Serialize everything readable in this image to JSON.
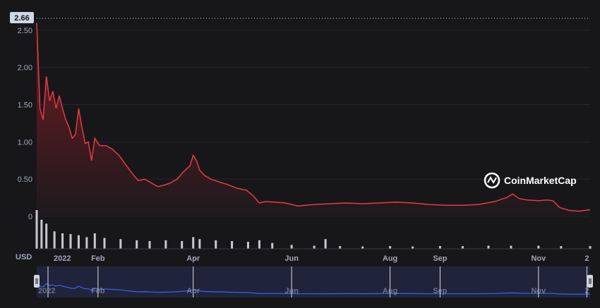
{
  "watermark": "CoinMarketCap",
  "currency_label": "USD",
  "price_badge": "2.66",
  "colors": {
    "background": "#17171a",
    "line": "#ea3943",
    "area_top": "#7a1c22",
    "area_bottom": "#1c1a1d",
    "volume": "#e7e9ef",
    "navigator_bg": "#20243a",
    "navigator_line": "#3861fb",
    "grid": "#26272c"
  },
  "chart_data": {
    "type": "area",
    "ylim": [
      0,
      2.66
    ],
    "y_ticks": [
      "0",
      "0.50",
      "1.00",
      "1.50",
      "2.00",
      "2.50"
    ],
    "y_tick_values": [
      0,
      0.5,
      1.0,
      1.5,
      2.0,
      2.5
    ],
    "x_ticks": [
      "2022",
      "Feb",
      "Apr",
      "Jun",
      "Aug",
      "Sep",
      "Nov",
      "2"
    ],
    "x_tick_dates": [
      "2022-01-01",
      "2022-02-01",
      "2022-04-01",
      "2022-06-01",
      "2022-08-01",
      "2022-09-01",
      "2022-11-01",
      "2022-12-01"
    ],
    "navigator_ticks": [
      "2022",
      "Feb",
      "Apr",
      "Jun",
      "Aug",
      "Sep",
      "Nov",
      "2"
    ],
    "grid": true,
    "series": [
      {
        "x": [
          "2021-12-25",
          "2021-12-27",
          "2021-12-29",
          "2021-12-31",
          "2022-01-02",
          "2022-01-04",
          "2022-01-06",
          "2022-01-08",
          "2022-01-10",
          "2022-01-12",
          "2022-01-14",
          "2022-01-16",
          "2022-01-18",
          "2022-01-20",
          "2022-01-22",
          "2022-01-24",
          "2022-01-26",
          "2022-01-28",
          "2022-01-30",
          "2022-02-02",
          "2022-02-06",
          "2022-02-10",
          "2022-02-14",
          "2022-02-18",
          "2022-02-22",
          "2022-02-26",
          "2022-03-02",
          "2022-03-06",
          "2022-03-10",
          "2022-03-14",
          "2022-03-18",
          "2022-03-22",
          "2022-03-26",
          "2022-03-30",
          "2022-04-01",
          "2022-04-03",
          "2022-04-05",
          "2022-04-08",
          "2022-04-12",
          "2022-04-16",
          "2022-04-22",
          "2022-04-28",
          "2022-05-04",
          "2022-05-08",
          "2022-05-12",
          "2022-05-16",
          "2022-05-22",
          "2022-05-28",
          "2022-06-05",
          "2022-06-15",
          "2022-06-25",
          "2022-07-05",
          "2022-07-15",
          "2022-07-25",
          "2022-08-05",
          "2022-08-15",
          "2022-08-25",
          "2022-09-05",
          "2022-09-15",
          "2022-09-25",
          "2022-10-05",
          "2022-10-12",
          "2022-10-16",
          "2022-10-20",
          "2022-10-25",
          "2022-11-01",
          "2022-11-06",
          "2022-11-10",
          "2022-11-14",
          "2022-11-20",
          "2022-11-26",
          "2022-12-03"
        ],
        "values": [
          2.6,
          1.45,
          1.3,
          1.88,
          1.55,
          1.68,
          1.45,
          1.62,
          1.45,
          1.3,
          1.2,
          1.05,
          1.1,
          1.45,
          1.2,
          0.98,
          1.0,
          0.75,
          1.05,
          0.95,
          0.95,
          0.9,
          0.82,
          0.7,
          0.58,
          0.48,
          0.5,
          0.45,
          0.4,
          0.42,
          0.45,
          0.5,
          0.6,
          0.68,
          0.82,
          0.75,
          0.62,
          0.55,
          0.5,
          0.47,
          0.43,
          0.38,
          0.35,
          0.28,
          0.18,
          0.2,
          0.19,
          0.18,
          0.14,
          0.16,
          0.17,
          0.18,
          0.17,
          0.18,
          0.19,
          0.18,
          0.16,
          0.15,
          0.15,
          0.16,
          0.2,
          0.25,
          0.3,
          0.24,
          0.22,
          0.21,
          0.22,
          0.21,
          0.12,
          0.08,
          0.07,
          0.09
        ]
      }
    ],
    "volume": {
      "x": [
        "2021-12-25",
        "2021-12-28",
        "2021-12-31",
        "2022-01-05",
        "2022-01-10",
        "2022-01-15",
        "2022-01-20",
        "2022-01-25",
        "2022-01-30",
        "2022-02-05",
        "2022-02-15",
        "2022-02-25",
        "2022-03-05",
        "2022-03-15",
        "2022-03-25",
        "2022-04-01",
        "2022-04-05",
        "2022-04-15",
        "2022-04-25",
        "2022-05-05",
        "2022-05-12",
        "2022-05-20",
        "2022-06-01",
        "2022-06-15",
        "2022-06-22",
        "2022-07-01",
        "2022-07-15",
        "2022-08-01",
        "2022-08-15",
        "2022-09-01",
        "2022-09-15",
        "2022-10-01",
        "2022-10-15",
        "2022-11-01",
        "2022-11-15",
        "2022-12-03"
      ],
      "values": [
        1.0,
        0.75,
        0.65,
        0.45,
        0.4,
        0.38,
        0.35,
        0.3,
        0.4,
        0.28,
        0.25,
        0.22,
        0.2,
        0.22,
        0.2,
        0.3,
        0.25,
        0.22,
        0.2,
        0.18,
        0.22,
        0.15,
        0.1,
        0.08,
        0.25,
        0.07,
        0.06,
        0.07,
        0.06,
        0.07,
        0.07,
        0.08,
        0.08,
        0.08,
        0.07,
        0.07
      ]
    }
  }
}
